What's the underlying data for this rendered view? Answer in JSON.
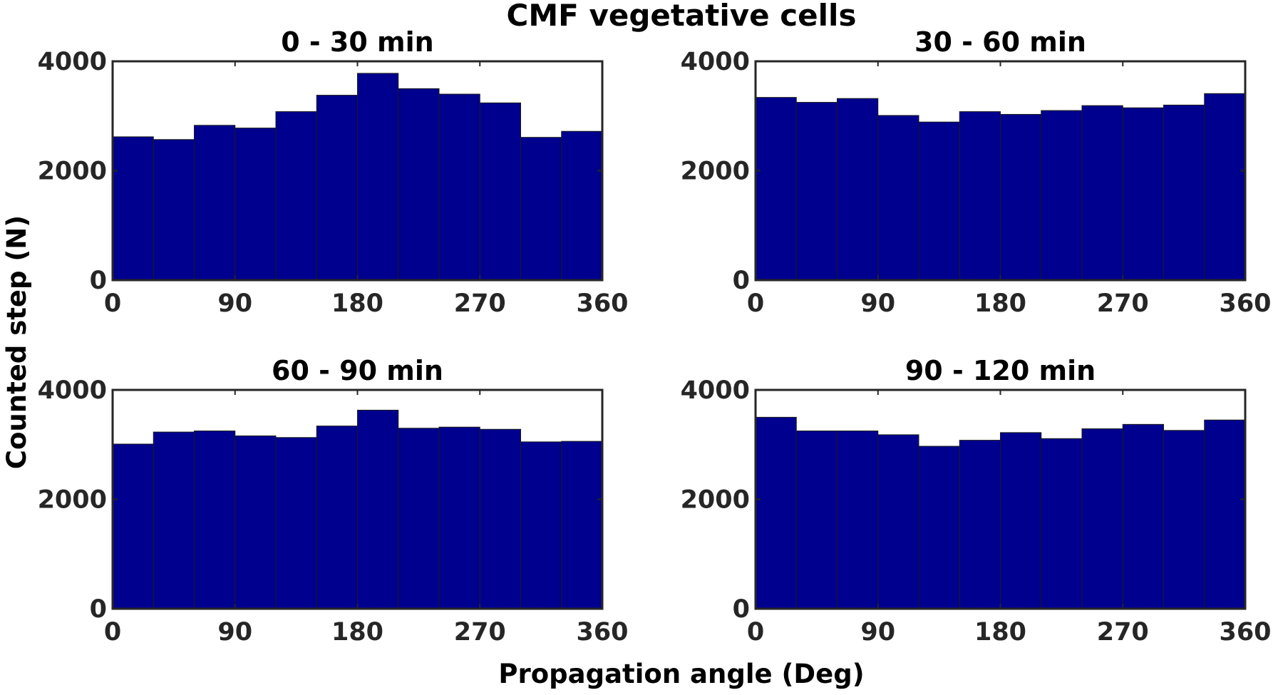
{
  "figure": {
    "title": "CMF vegetative cells",
    "xlabel": "Propagation angle (Deg)",
    "ylabel": "Counted step (N)",
    "bar_color": "#00008f",
    "edge_color": "#1a1a1a",
    "axis_color": "#262626"
  },
  "chart_data": [
    {
      "type": "bar",
      "title": "0 - 30 min",
      "bin_edges": [
        0,
        30,
        60,
        90,
        120,
        150,
        180,
        210,
        240,
        270,
        300,
        330,
        360
      ],
      "values": [
        2620,
        2570,
        2830,
        2780,
        3080,
        3380,
        3780,
        3500,
        3400,
        3240,
        2610,
        2720
      ],
      "xlim": [
        0,
        360
      ],
      "ylim": [
        0,
        4000
      ],
      "xticks": [
        0,
        90,
        180,
        270,
        360
      ],
      "xtick_labels": [
        "0",
        "90",
        "180",
        "270",
        "360"
      ],
      "yticks": [
        0,
        2000,
        4000
      ],
      "ytick_labels": [
        "0",
        "2000",
        "4000"
      ]
    },
    {
      "type": "bar",
      "title": "30 - 60 min",
      "bin_edges": [
        0,
        30,
        60,
        90,
        120,
        150,
        180,
        210,
        240,
        270,
        300,
        330,
        360
      ],
      "values": [
        3340,
        3250,
        3320,
        3010,
        2890,
        3080,
        3030,
        3100,
        3190,
        3150,
        3200,
        3410
      ],
      "xlim": [
        0,
        360
      ],
      "ylim": [
        0,
        4000
      ],
      "xticks": [
        0,
        90,
        180,
        270,
        360
      ],
      "xtick_labels": [
        "0",
        "90",
        "180",
        "270",
        "360"
      ],
      "yticks": [
        0,
        2000,
        4000
      ],
      "ytick_labels": [
        "0",
        "2000",
        "4000"
      ]
    },
    {
      "type": "bar",
      "title": "60 - 90 min",
      "bin_edges": [
        0,
        30,
        60,
        90,
        120,
        150,
        180,
        210,
        240,
        270,
        300,
        330,
        360
      ],
      "values": [
        3010,
        3230,
        3250,
        3160,
        3130,
        3340,
        3630,
        3300,
        3320,
        3280,
        3050,
        3060
      ],
      "xlim": [
        0,
        360
      ],
      "ylim": [
        0,
        4000
      ],
      "xticks": [
        0,
        90,
        180,
        270,
        360
      ],
      "xtick_labels": [
        "0",
        "90",
        "180",
        "270",
        "360"
      ],
      "yticks": [
        0,
        2000,
        4000
      ],
      "ytick_labels": [
        "0",
        "2000",
        "4000"
      ]
    },
    {
      "type": "bar",
      "title": "90 - 120 min",
      "bin_edges": [
        0,
        30,
        60,
        90,
        120,
        150,
        180,
        210,
        240,
        270,
        300,
        330,
        360
      ],
      "values": [
        3500,
        3250,
        3250,
        3180,
        2970,
        3080,
        3220,
        3110,
        3290,
        3370,
        3260,
        3450
      ],
      "xlim": [
        0,
        360
      ],
      "ylim": [
        0,
        4000
      ],
      "xticks": [
        0,
        90,
        180,
        270,
        360
      ],
      "xtick_labels": [
        "0",
        "90",
        "180",
        "270",
        "360"
      ],
      "yticks": [
        0,
        2000,
        4000
      ],
      "ytick_labels": [
        "0",
        "2000",
        "4000"
      ]
    }
  ]
}
